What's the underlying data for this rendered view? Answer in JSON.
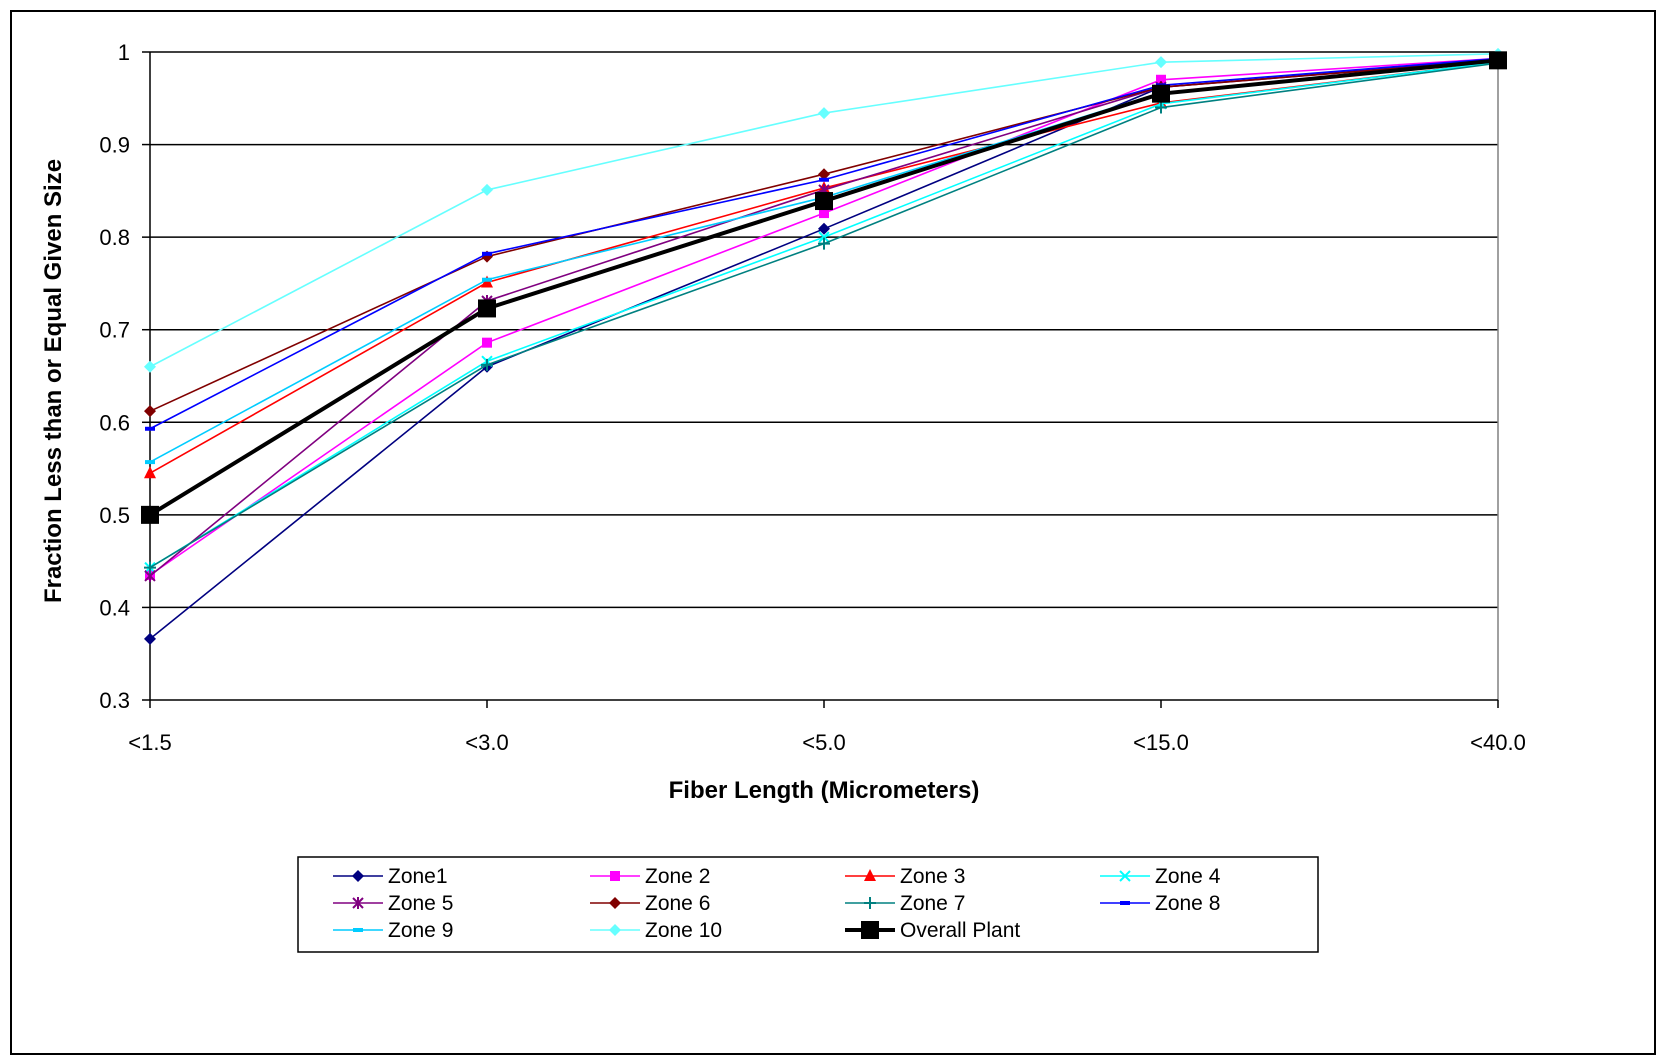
{
  "chart_data": {
    "type": "line",
    "title": "",
    "xlabel": "Fiber Length (Micrometers)",
    "ylabel": "Fraction  Less than or Equal Given Size",
    "categories": [
      "<1.5",
      "<3.0",
      "<5.0",
      "<15.0",
      "<40.0"
    ],
    "ylim": [
      0.3,
      1
    ],
    "yticks": [
      "0.3",
      "0.4",
      "0.5",
      "0.6",
      "0.7",
      "0.8",
      "0.9",
      "1"
    ],
    "grid": "horizontal",
    "legend_position": "bottom",
    "series": [
      {
        "name": "Zone1",
        "color": "#000080",
        "marker": "diamond",
        "values": [
          0.366,
          0.66,
          0.809,
          0.962,
          0.992
        ]
      },
      {
        "name": "Zone 2",
        "color": "#ff00ff",
        "marker": "square",
        "values": [
          0.435,
          0.686,
          0.826,
          0.97,
          0.993
        ]
      },
      {
        "name": "Zone 3",
        "color": "#ff0000",
        "marker": "triangle",
        "values": [
          0.545,
          0.751,
          0.853,
          0.945,
          0.989
        ]
      },
      {
        "name": "Zone 4",
        "color": "#00ffff",
        "marker": "x",
        "values": [
          0.443,
          0.666,
          0.8,
          0.944,
          0.989
        ]
      },
      {
        "name": "Zone 5",
        "color": "#800080",
        "marker": "star",
        "values": [
          0.434,
          0.731,
          0.851,
          0.962,
          0.991
        ]
      },
      {
        "name": "Zone 6",
        "color": "#800000",
        "marker": "diamond",
        "values": [
          0.612,
          0.779,
          0.868,
          0.962,
          0.991
        ]
      },
      {
        "name": "Zone 7",
        "color": "#008080",
        "marker": "plus",
        "values": [
          0.443,
          0.662,
          0.793,
          0.94,
          0.988
        ]
      },
      {
        "name": "Zone 8",
        "color": "#0000ff",
        "marker": "dash",
        "values": [
          0.593,
          0.782,
          0.862,
          0.964,
          0.993
        ]
      },
      {
        "name": "Zone 9",
        "color": "#00ccff",
        "marker": "dash",
        "values": [
          0.557,
          0.754,
          0.843,
          0.956,
          0.99
        ]
      },
      {
        "name": "Zone 10",
        "color": "#66ffff",
        "marker": "diamond",
        "values": [
          0.66,
          0.851,
          0.934,
          0.989,
          0.998
        ]
      },
      {
        "name": "Overall Plant",
        "color": "#000000",
        "marker": "bigsquare",
        "values": [
          0.5,
          0.723,
          0.839,
          0.955,
          0.991
        ]
      }
    ]
  }
}
